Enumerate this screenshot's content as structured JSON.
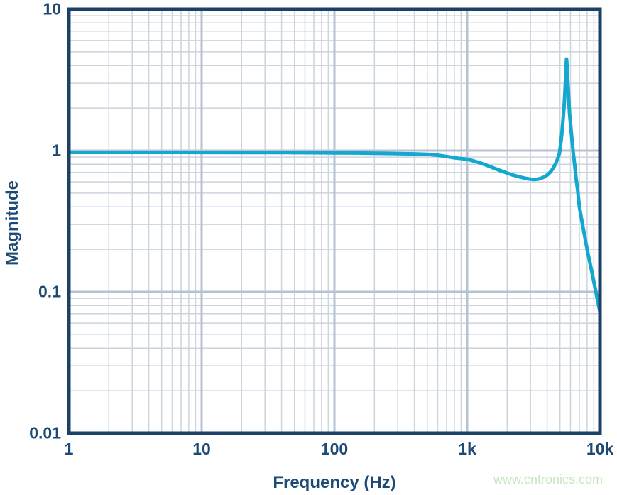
{
  "watermark": {
    "text": "www.cntronics.com",
    "color": "#c9e6c0"
  },
  "chart_data": {
    "type": "line",
    "title": "",
    "xlabel": "Frequency (Hz)",
    "ylabel": "Magnitude",
    "x_scale": "log",
    "y_scale": "log",
    "xlim": [
      1,
      10000
    ],
    "ylim": [
      0.01,
      10
    ],
    "grid": "log-log, major and minor lines on",
    "legend": "none",
    "xtick_labels": [
      "1",
      "10",
      "100",
      "1k",
      "10k"
    ],
    "ytick_labels": [
      "10",
      "1",
      "0.1",
      "0.01"
    ],
    "colors": {
      "curve": "#14a7cf",
      "axis": "#1c4166",
      "text": "#1c4a75",
      "grid_minor": "#ccd4de",
      "grid_major": "#b7c2d2"
    },
    "series": [
      {
        "name": "magnitude-response",
        "points": [
          [
            1,
            0.972
          ],
          [
            2,
            0.972
          ],
          [
            4,
            0.971
          ],
          [
            7,
            0.971
          ],
          [
            10,
            0.97
          ],
          [
            20,
            0.969
          ],
          [
            40,
            0.968
          ],
          [
            70,
            0.966
          ],
          [
            100,
            0.964
          ],
          [
            150,
            0.961
          ],
          [
            200,
            0.958
          ],
          [
            300,
            0.953
          ],
          [
            400,
            0.948
          ],
          [
            500,
            0.941
          ],
          [
            600,
            0.928
          ],
          [
            700,
            0.908
          ],
          [
            800,
            0.889
          ],
          [
            900,
            0.878
          ],
          [
            1000,
            0.868
          ],
          [
            1100,
            0.848
          ],
          [
            1250,
            0.818
          ],
          [
            1400,
            0.788
          ],
          [
            1600,
            0.749
          ],
          [
            1800,
            0.718
          ],
          [
            2000,
            0.693
          ],
          [
            2200,
            0.672
          ],
          [
            2400,
            0.656
          ],
          [
            2600,
            0.644
          ],
          [
            2800,
            0.634
          ],
          [
            3000,
            0.627
          ],
          [
            3200,
            0.624
          ],
          [
            3400,
            0.627
          ],
          [
            3600,
            0.636
          ],
          [
            3800,
            0.651
          ],
          [
            4000,
            0.671
          ],
          [
            4200,
            0.699
          ],
          [
            4400,
            0.739
          ],
          [
            4600,
            0.795
          ],
          [
            4800,
            0.873
          ],
          [
            4950,
            0.955
          ],
          [
            5100,
            1.18
          ],
          [
            5200,
            1.42
          ],
          [
            5300,
            1.75
          ],
          [
            5400,
            2.25
          ],
          [
            5500,
            3.1
          ],
          [
            5560,
            3.85
          ],
          [
            5600,
            4.45
          ],
          [
            5650,
            4.0
          ],
          [
            5700,
            3.4
          ],
          [
            5800,
            2.45
          ],
          [
            5900,
            1.85
          ],
          [
            6000,
            1.55
          ],
          [
            6150,
            1.2
          ],
          [
            6300,
            0.95
          ],
          [
            6450,
            0.79
          ],
          [
            6600,
            0.64
          ],
          [
            6800,
            0.52
          ],
          [
            7000,
            0.4
          ],
          [
            7300,
            0.32
          ],
          [
            7600,
            0.26
          ],
          [
            8000,
            0.2
          ],
          [
            8400,
            0.161
          ],
          [
            8800,
            0.131
          ],
          [
            9200,
            0.106
          ],
          [
            9600,
            0.087
          ],
          [
            10000,
            0.072
          ]
        ]
      }
    ]
  }
}
